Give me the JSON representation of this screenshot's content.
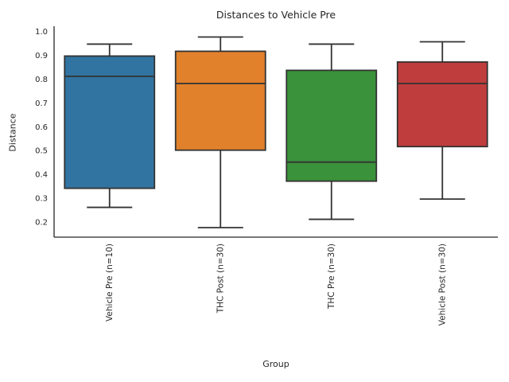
{
  "chart_data": {
    "type": "box",
    "title": "Distances to Vehicle Pre",
    "xlabel": "Group",
    "ylabel": "Distance",
    "categories": [
      "Vehicle Pre (n=10)",
      "THC Post (n=30)",
      "THC Pre (n=30)",
      "Vehicle Post (n=30)"
    ],
    "yticks": [
      1.0,
      0.9,
      0.8,
      0.7,
      0.6,
      0.5,
      0.4,
      0.3,
      0.2
    ],
    "ylim": [
      0.14,
      1.025
    ],
    "grid": false,
    "legend": false,
    "series": [
      {
        "label": "Vehicle Pre (n=10)",
        "color": "#3274A1",
        "whislo": 0.265,
        "q1": 0.345,
        "med": 0.815,
        "q3": 0.9,
        "whishi": 0.95,
        "fliers": []
      },
      {
        "label": "THC Post (n=30)",
        "color": "#E1812C",
        "whislo": 0.18,
        "q1": 0.505,
        "med": 0.785,
        "q3": 0.92,
        "whishi": 0.98,
        "fliers": []
      },
      {
        "label": "THC Pre (n=30)",
        "color": "#3A923A",
        "whislo": 0.215,
        "q1": 0.375,
        "med": 0.455,
        "q3": 0.84,
        "whishi": 0.95,
        "fliers": []
      },
      {
        "label": "Vehicle Post (n=30)",
        "color": "#C03D3E",
        "whislo": 0.3,
        "q1": 0.52,
        "med": 0.785,
        "q3": 0.875,
        "whishi": 0.96,
        "fliers": []
      }
    ],
    "style": {
      "line_color": "#333333",
      "axis_color": "#262626",
      "text_color": "#262626",
      "background": "#ffffff"
    }
  }
}
